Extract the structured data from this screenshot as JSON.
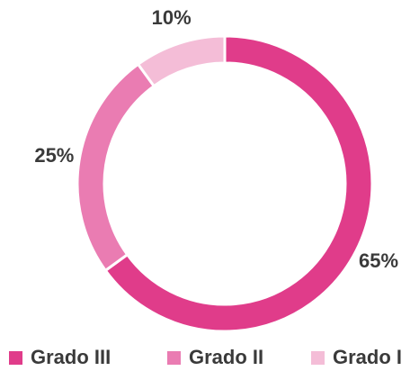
{
  "chart_data": {
    "type": "donut",
    "categories": [
      "Grado III",
      "Grado II",
      "Grado I"
    ],
    "values": [
      65,
      25,
      10
    ],
    "value_labels": [
      "65%",
      "25%",
      "10%"
    ],
    "colors": [
      "#e03c8a",
      "#ea7cb2",
      "#f4bdd7"
    ],
    "legend": "bottom"
  }
}
